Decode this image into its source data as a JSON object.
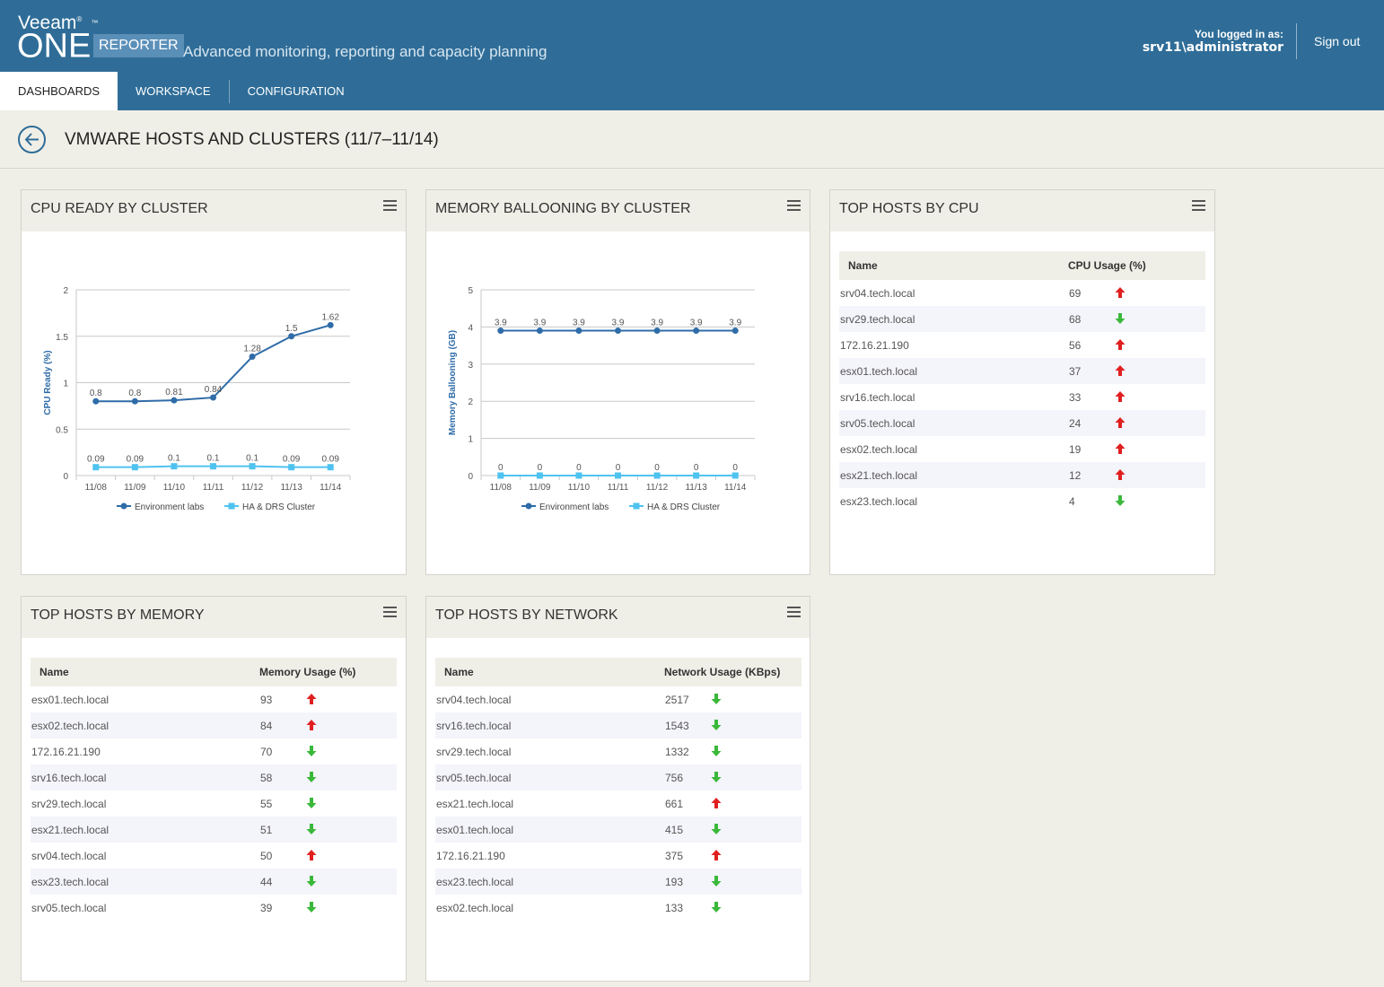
{
  "header": {
    "logo_veeam": "Veeam",
    "logo_one": "ONE",
    "badge": "REPORTER",
    "tagline": "Advanced monitoring, reporting and capacity planning",
    "login_label": "You logged in as:",
    "login_user": "srv11\\administrator",
    "signout": "Sign out",
    "brand_color": "#2f6d98"
  },
  "nav": {
    "tabs": [
      "DASHBOARDS",
      "WORKSPACE",
      "CONFIGURATION"
    ],
    "active": "DASHBOARDS"
  },
  "page": {
    "title": "VMWARE HOSTS AND CLUSTERS (11/7–11/14)"
  },
  "widgets": {
    "cpu_ready": {
      "title": "CPU READY BY CLUSTER"
    },
    "mem_balloon": {
      "title": "MEMORY BALLOONING BY CLUSTER"
    },
    "top_cpu": {
      "title": "TOP HOSTS BY CPU",
      "col_name": "Name",
      "col_value": "CPU Usage (%)",
      "rows": [
        {
          "name": "srv04.tech.local",
          "value": "69",
          "trend": "up"
        },
        {
          "name": "srv29.tech.local",
          "value": "68",
          "trend": "down"
        },
        {
          "name": "172.16.21.190",
          "value": "56",
          "trend": "up"
        },
        {
          "name": "esx01.tech.local",
          "value": "37",
          "trend": "up"
        },
        {
          "name": "srv16.tech.local",
          "value": "33",
          "trend": "up"
        },
        {
          "name": "srv05.tech.local",
          "value": "24",
          "trend": "up"
        },
        {
          "name": "esx02.tech.local",
          "value": "19",
          "trend": "up"
        },
        {
          "name": "esx21.tech.local",
          "value": "12",
          "trend": "up"
        },
        {
          "name": "esx23.tech.local",
          "value": "4",
          "trend": "down"
        }
      ]
    },
    "top_mem": {
      "title": "TOP HOSTS BY MEMORY",
      "col_name": "Name",
      "col_value": "Memory Usage (%)",
      "rows": [
        {
          "name": "esx01.tech.local",
          "value": "93",
          "trend": "up"
        },
        {
          "name": "esx02.tech.local",
          "value": "84",
          "trend": "up"
        },
        {
          "name": "172.16.21.190",
          "value": "70",
          "trend": "down"
        },
        {
          "name": "srv16.tech.local",
          "value": "58",
          "trend": "down"
        },
        {
          "name": "srv29.tech.local",
          "value": "55",
          "trend": "down"
        },
        {
          "name": "esx21.tech.local",
          "value": "51",
          "trend": "down"
        },
        {
          "name": "srv04.tech.local",
          "value": "50",
          "trend": "up"
        },
        {
          "name": "esx23.tech.local",
          "value": "44",
          "trend": "down"
        },
        {
          "name": "srv05.tech.local",
          "value": "39",
          "trend": "down"
        }
      ]
    },
    "top_net": {
      "title": "TOP HOSTS BY NETWORK",
      "col_name": "Name",
      "col_value": "Network Usage (KBps)",
      "rows": [
        {
          "name": "srv04.tech.local",
          "value": "2517",
          "trend": "down"
        },
        {
          "name": "srv16.tech.local",
          "value": "1543",
          "trend": "down"
        },
        {
          "name": "srv29.tech.local",
          "value": "1332",
          "trend": "down"
        },
        {
          "name": "srv05.tech.local",
          "value": "756",
          "trend": "down"
        },
        {
          "name": "esx21.tech.local",
          "value": "661",
          "trend": "up"
        },
        {
          "name": "esx01.tech.local",
          "value": "415",
          "trend": "down"
        },
        {
          "name": "172.16.21.190",
          "value": "375",
          "trend": "up"
        },
        {
          "name": "esx23.tech.local",
          "value": "193",
          "trend": "down"
        },
        {
          "name": "esx02.tech.local",
          "value": "133",
          "trend": "down"
        }
      ]
    }
  },
  "colors": {
    "series1": "#2f6ca8",
    "series2": "#4fc3f0",
    "trend_up": "#e02020",
    "trend_down": "#3ab83a"
  },
  "chart_data": [
    {
      "type": "line",
      "title": "CPU READY BY CLUSTER",
      "ylabel": "CPU Ready (%)",
      "x": [
        "11/08",
        "11/09",
        "11/10",
        "11/11",
        "11/12",
        "11/13",
        "11/14"
      ],
      "ylim": [
        0,
        2
      ],
      "yticks": [
        "0",
        "0.5",
        "1",
        "1.5",
        "2"
      ],
      "ytick_values": [
        0,
        0.5,
        1,
        1.5,
        2
      ],
      "grid": true,
      "legend": "bottom",
      "series": [
        {
          "name": "Environment labs",
          "values": [
            0.8,
            0.8,
            0.81,
            0.84,
            1.28,
            1.5,
            1.62
          ],
          "labels": [
            "0.8",
            "0.8",
            "0.81",
            "0.84",
            "1.28",
            "1.5",
            "1.62"
          ]
        },
        {
          "name": "HA & DRS Cluster",
          "values": [
            0.09,
            0.09,
            0.1,
            0.1,
            0.1,
            0.09,
            0.09
          ],
          "labels": [
            "0.09",
            "0.09",
            "0.1",
            "0.1",
            "0.1",
            "0.09",
            "0.09"
          ]
        }
      ]
    },
    {
      "type": "line",
      "title": "MEMORY BALLOONING BY CLUSTER",
      "ylabel": "Memory Ballooning (GB)",
      "x": [
        "11/08",
        "11/09",
        "11/10",
        "11/11",
        "11/12",
        "11/13",
        "11/14"
      ],
      "ylim": [
        0,
        5
      ],
      "yticks": [
        "0",
        "1",
        "2",
        "3",
        "4",
        "5"
      ],
      "ytick_values": [
        0,
        1,
        2,
        3,
        4,
        5
      ],
      "grid": true,
      "legend": "bottom",
      "series": [
        {
          "name": "Environment labs",
          "values": [
            3.9,
            3.9,
            3.9,
            3.9,
            3.9,
            3.9,
            3.9
          ],
          "labels": [
            "3.9",
            "3.9",
            "3.9",
            "3.9",
            "3.9",
            "3.9",
            "3.9"
          ]
        },
        {
          "name": "HA & DRS Cluster",
          "values": [
            0,
            0,
            0,
            0,
            0,
            0,
            0
          ],
          "labels": [
            "0",
            "0",
            "0",
            "0",
            "0",
            "0",
            "0"
          ]
        }
      ]
    }
  ]
}
